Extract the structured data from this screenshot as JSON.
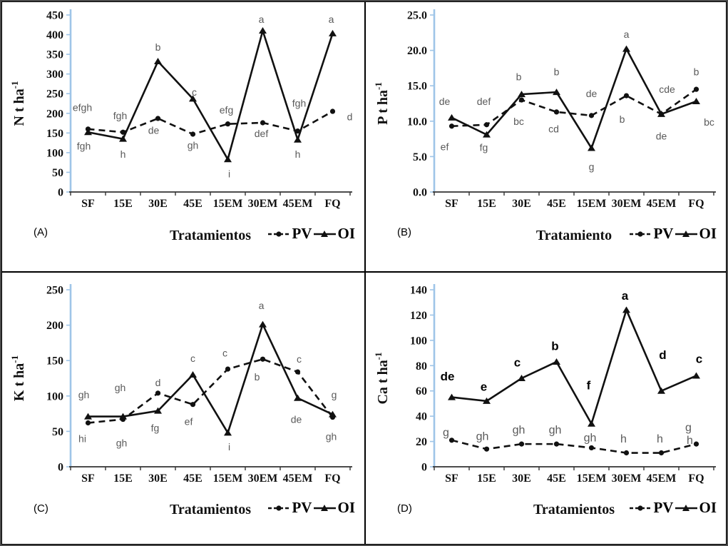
{
  "colors": {
    "axis_blue": "#9fc5e8",
    "x_axis": "#333333",
    "series_black": "#111111",
    "annotation_gray": "#5a5a5a"
  },
  "chart_data": [
    {
      "id": "A",
      "type": "line",
      "panel_label": "(A)",
      "ylabel": {
        "base": "N t ha",
        "sup": "-1"
      },
      "xlabel": "Tratamientos",
      "categories": [
        "SF",
        "15E",
        "30E",
        "45E",
        "15EM",
        "30EM",
        "45EM",
        "FQ"
      ],
      "ylim": [
        0,
        450
      ],
      "ystep": 50,
      "ydecimals": 0,
      "ann_size": 14,
      "series": [
        {
          "name": "PV",
          "style": "dashed-circle",
          "values": [
            160,
            152,
            187,
            147,
            173,
            176,
            155,
            205
          ]
        },
        {
          "name": "OI",
          "style": "solid-triangle",
          "values": [
            152,
            135,
            332,
            237,
            83,
            410,
            133,
            403
          ]
        }
      ],
      "annotations": [
        {
          "i": 0,
          "text": "efgh",
          "y": 215,
          "dx": -8
        },
        {
          "i": 0,
          "text": "fgh",
          "y": 117,
          "dx": -6
        },
        {
          "i": 1,
          "text": "fgh",
          "y": 194,
          "dx": -4
        },
        {
          "i": 1,
          "text": "h",
          "y": 96,
          "dx": 0
        },
        {
          "i": 2,
          "text": "b",
          "y": 368,
          "dx": 0
        },
        {
          "i": 2,
          "text": "de",
          "y": 157,
          "dx": -6
        },
        {
          "i": 3,
          "text": "c",
          "y": 254,
          "dx": 2
        },
        {
          "i": 3,
          "text": "gh",
          "y": 119,
          "dx": 0
        },
        {
          "i": 4,
          "text": "efg",
          "y": 209,
          "dx": -2
        },
        {
          "i": 4,
          "text": "i",
          "y": 46,
          "dx": 2
        },
        {
          "i": 5,
          "text": "a",
          "y": 439,
          "dx": -2
        },
        {
          "i": 5,
          "text": "def",
          "y": 149,
          "dx": -2
        },
        {
          "i": 6,
          "text": "fgh",
          "y": 226,
          "dx": 2
        },
        {
          "i": 6,
          "text": "h",
          "y": 96,
          "dx": 0
        },
        {
          "i": 7,
          "text": "a",
          "y": 439,
          "dx": -2
        },
        {
          "i": 7,
          "text": "d",
          "y": 191,
          "dx": 24
        }
      ]
    },
    {
      "id": "B",
      "type": "line",
      "panel_label": "(B)",
      "ylabel": {
        "base": "P t ha",
        "sup": "-1"
      },
      "xlabel": "Tratamiento",
      "categories": [
        "SF",
        "15E",
        "30E",
        "45E",
        "15EM",
        "30EM",
        "45EM",
        "FQ"
      ],
      "ylim": [
        0,
        25
      ],
      "ystep": 5,
      "ydecimals": 1,
      "ann_size": 14,
      "series": [
        {
          "name": "PV",
          "style": "dashed-circle",
          "values": [
            9.3,
            9.5,
            13.0,
            11.3,
            10.8,
            13.6,
            11.0,
            14.5
          ]
        },
        {
          "name": "OI",
          "style": "solid-triangle",
          "values": [
            10.5,
            8.1,
            13.8,
            14.1,
            6.2,
            20.2,
            11.0,
            12.8
          ]
        }
      ],
      "annotations": [
        {
          "i": 0,
          "text": "de",
          "y": 12.8,
          "dx": -10
        },
        {
          "i": 0,
          "text": "ef",
          "y": 6.4,
          "dx": -10
        },
        {
          "i": 1,
          "text": "def",
          "y": 12.8,
          "dx": -4
        },
        {
          "i": 1,
          "text": "fg",
          "y": 6.3,
          "dx": -4
        },
        {
          "i": 2,
          "text": "b",
          "y": 16.3,
          "dx": -4
        },
        {
          "i": 2,
          "text": "bc",
          "y": 10.0,
          "dx": -4
        },
        {
          "i": 3,
          "text": "b",
          "y": 17.0,
          "dx": 0
        },
        {
          "i": 3,
          "text": "cd",
          "y": 8.9,
          "dx": -4
        },
        {
          "i": 4,
          "text": "de",
          "y": 13.9,
          "dx": 0
        },
        {
          "i": 4,
          "text": "g",
          "y": 3.6,
          "dx": 0
        },
        {
          "i": 5,
          "text": "a",
          "y": 22.3,
          "dx": 0
        },
        {
          "i": 5,
          "text": "b",
          "y": 10.3,
          "dx": -6
        },
        {
          "i": 6,
          "text": "cde",
          "y": 14.5,
          "dx": 8
        },
        {
          "i": 6,
          "text": "de",
          "y": 7.9,
          "dx": 0
        },
        {
          "i": 7,
          "text": "b",
          "y": 17.0,
          "dx": 0
        },
        {
          "i": 7,
          "text": "bc",
          "y": 9.9,
          "dx": 18
        }
      ]
    },
    {
      "id": "C",
      "type": "line",
      "panel_label": "(C)",
      "ylabel": {
        "base": "K t ha",
        "sup": "-1"
      },
      "xlabel": "Tratamientos",
      "categories": [
        "SF",
        "15E",
        "30E",
        "45E",
        "15EM",
        "30EM",
        "45EM",
        "FQ"
      ],
      "ylim": [
        0,
        250
      ],
      "ystep": 50,
      "ydecimals": 0,
      "ann_size": 14,
      "series": [
        {
          "name": "PV",
          "style": "dashed-circle",
          "values": [
            62,
            67,
            104,
            88,
            138,
            152,
            134,
            70
          ]
        },
        {
          "name": "OI",
          "style": "solid-triangle",
          "values": [
            71,
            71,
            79,
            130,
            48,
            201,
            97,
            74
          ]
        }
      ],
      "annotations": [
        {
          "i": 0,
          "text": "gh",
          "y": 102,
          "dx": -6
        },
        {
          "i": 0,
          "text": "hi",
          "y": 40,
          "dx": -8
        },
        {
          "i": 1,
          "text": "gh",
          "y": 112,
          "dx": -4
        },
        {
          "i": 1,
          "text": "gh",
          "y": 34,
          "dx": -2
        },
        {
          "i": 2,
          "text": "d",
          "y": 119,
          "dx": 0
        },
        {
          "i": 2,
          "text": "fg",
          "y": 55,
          "dx": -4
        },
        {
          "i": 3,
          "text": "c",
          "y": 153,
          "dx": 0
        },
        {
          "i": 3,
          "text": "ef",
          "y": 64,
          "dx": -6
        },
        {
          "i": 4,
          "text": "c",
          "y": 161,
          "dx": -4
        },
        {
          "i": 4,
          "text": "i",
          "y": 28,
          "dx": 2
        },
        {
          "i": 5,
          "text": "a",
          "y": 228,
          "dx": -2
        },
        {
          "i": 5,
          "text": "b",
          "y": 127,
          "dx": -8
        },
        {
          "i": 6,
          "text": "c",
          "y": 152,
          "dx": 2
        },
        {
          "i": 6,
          "text": "de",
          "y": 67,
          "dx": -2
        },
        {
          "i": 7,
          "text": "g",
          "y": 102,
          "dx": 2
        },
        {
          "i": 7,
          "text": "gh",
          "y": 43,
          "dx": -2
        }
      ]
    },
    {
      "id": "D",
      "type": "line",
      "panel_label": "(D)",
      "ylabel": {
        "base": "Ca t ha",
        "sup": "-1"
      },
      "xlabel": "Tratamientos",
      "categories": [
        "SF",
        "15E",
        "30E",
        "45E",
        "15EM",
        "30EM",
        "45EM",
        "FQ"
      ],
      "ylim": [
        0,
        140
      ],
      "ystep": 20,
      "ydecimals": 0,
      "ann_size": 16,
      "series": [
        {
          "name": "PV",
          "style": "dashed-circle",
          "values": [
            21,
            14,
            18,
            18,
            15,
            11,
            11,
            18
          ]
        },
        {
          "name": "OI",
          "style": "solid-triangle",
          "values": [
            55,
            52,
            70,
            83,
            34,
            124,
            60,
            72
          ]
        }
      ],
      "annotations": [
        {
          "i": 0,
          "text": "de",
          "y": 71,
          "dx": -6,
          "strong": true
        },
        {
          "i": 1,
          "text": "e",
          "y": 63,
          "dx": -4,
          "strong": true
        },
        {
          "i": 2,
          "text": "c",
          "y": 82,
          "dx": -6,
          "strong": true
        },
        {
          "i": 3,
          "text": "b",
          "y": 95,
          "dx": -2,
          "strong": true
        },
        {
          "i": 4,
          "text": "f",
          "y": 64,
          "dx": -4,
          "strong": true
        },
        {
          "i": 5,
          "text": "a",
          "y": 135,
          "dx": -2,
          "strong": true
        },
        {
          "i": 6,
          "text": "d",
          "y": 88,
          "dx": 2,
          "strong": true
        },
        {
          "i": 7,
          "text": "c",
          "y": 85,
          "dx": 4,
          "strong": true
        },
        {
          "i": 0,
          "text": "g",
          "y": 27,
          "dx": -8
        },
        {
          "i": 1,
          "text": "gh",
          "y": 24,
          "dx": -6
        },
        {
          "i": 2,
          "text": "gh",
          "y": 29,
          "dx": -4
        },
        {
          "i": 3,
          "text": "gh",
          "y": 29,
          "dx": -2
        },
        {
          "i": 4,
          "text": "gh",
          "y": 23,
          "dx": -2
        },
        {
          "i": 5,
          "text": "h",
          "y": 22,
          "dx": -4
        },
        {
          "i": 6,
          "text": "h",
          "y": 22,
          "dx": -2
        },
        {
          "i": 7,
          "text": "g",
          "y": 31,
          "dx": -11
        },
        {
          "i": 7,
          "text": "h",
          "y": 21,
          "dx": -9
        }
      ]
    }
  ]
}
